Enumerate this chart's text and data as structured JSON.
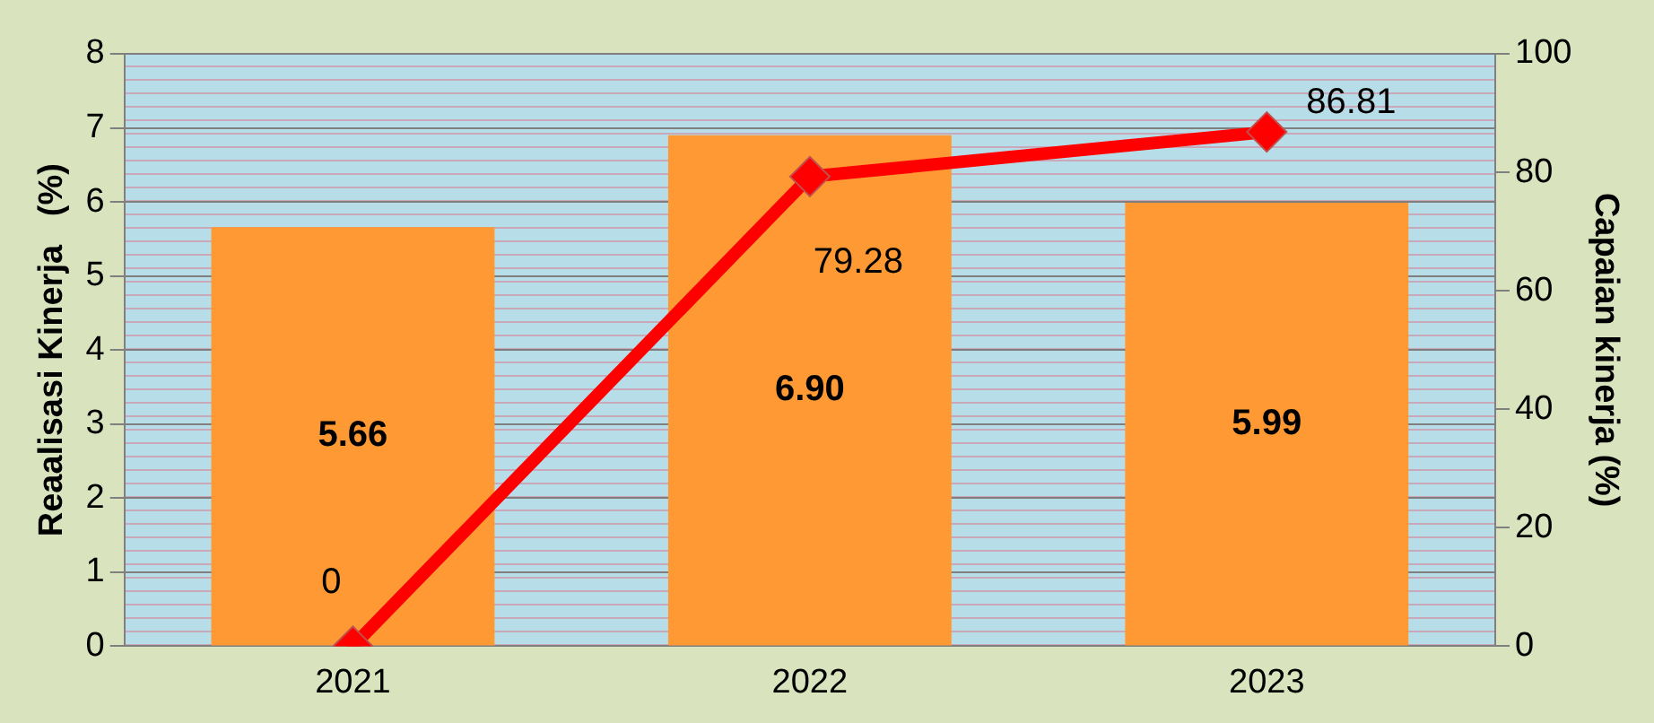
{
  "chart_data": {
    "type": "bar",
    "ylabel": "Reaalisasi Kinerja   (%)",
    "y2label": "Capaian kinerja (%)",
    "categories": [
      "2021",
      "2022",
      "2023"
    ],
    "series": [
      {
        "color": "#ff9933",
        "values": [
          5.66,
          6.9,
          5.99
        ]
      },
      {
        "type": "line",
        "axis": "y2",
        "color": "#ff0000",
        "values": [
          0,
          79.28,
          86.81
        ]
      }
    ],
    "ylim": [
      0,
      8
    ],
    "yticks": [
      0,
      1,
      2,
      3,
      4,
      5,
      6,
      7,
      8
    ],
    "y2lim": [
      0,
      100
    ],
    "y2ticks": [
      0,
      20,
      40,
      60,
      80,
      100
    ],
    "value_labels": [
      [
        "5.66",
        "6.90",
        "5.99"
      ],
      [
        "0",
        "79.28",
        "86.81"
      ]
    ],
    "grid": "y",
    "legend": false,
    "marker": "diamond",
    "line_style": "solid"
  }
}
